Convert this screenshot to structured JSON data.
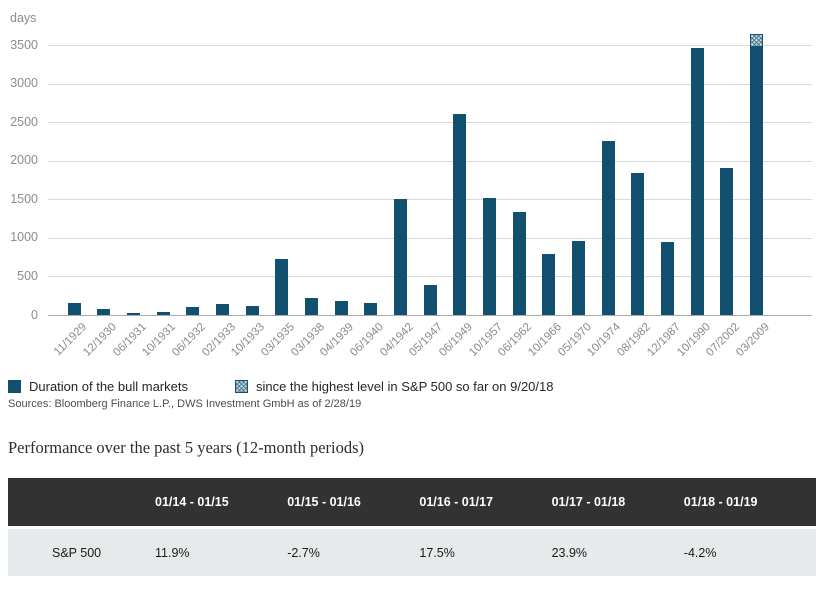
{
  "chart": {
    "unit_label": "days",
    "y_ticks": [
      0,
      500,
      1000,
      1500,
      2000,
      2500,
      3000,
      3500
    ],
    "legend": {
      "solid_label": "Duration of the bull markets",
      "hatched_label": "since the highest level in S&P 500 so far on 9/20/18"
    },
    "sources": "Sources: Bloomberg Finance L.P., DWS Investment GmbH as of 2/28/19"
  },
  "chart_data": {
    "type": "bar",
    "stacked": true,
    "categories": [
      "11/1929",
      "12/1930",
      "06/1931",
      "10/1931",
      "06/1932",
      "02/1933",
      "10/1933",
      "03/1935",
      "03/1938",
      "04/1939",
      "06/1940",
      "04/1942",
      "05/1947",
      "06/1949",
      "10/1957",
      "06/1962",
      "10/1966",
      "05/1970",
      "10/1974",
      "08/1982",
      "12/1987",
      "10/1990",
      "07/2002",
      "03/2009"
    ],
    "series": [
      {
        "name": "Duration of the bull markets",
        "values": [
          150,
          80,
          30,
          40,
          105,
          145,
          115,
          720,
          215,
          185,
          150,
          1500,
          390,
          2610,
          1520,
          1330,
          790,
          965,
          2250,
          1845,
          950,
          3455,
          1910,
          3480
        ]
      },
      {
        "name": "since the highest level in S&P 500 so far on 9/20/18",
        "values": [
          0,
          0,
          0,
          0,
          0,
          0,
          0,
          0,
          0,
          0,
          0,
          0,
          0,
          0,
          0,
          0,
          0,
          0,
          0,
          0,
          0,
          0,
          0,
          160
        ]
      }
    ],
    "ylabel": "days",
    "ylim": [
      0,
      3500
    ],
    "grid": true,
    "legend_position": "bottom"
  },
  "table_section": {
    "title": "Performance over the past 5 years (12-month periods)",
    "columns": [
      "",
      "01/14 - 01/15",
      "01/15 - 01/16",
      "01/16 - 01/17",
      "01/17 - 01/18",
      "01/18 - 01/19"
    ],
    "rows": [
      {
        "label": "S&P 500",
        "values": [
          "11.9%",
          "-2.7%",
          "17.5%",
          "23.9%",
          "-4.2%"
        ]
      }
    ]
  },
  "colors": {
    "bar": "#11506e",
    "hatch_fill": "#c5d7e1",
    "hatch_line": "#16526e",
    "grid": "#d9d9d9",
    "table_header_bg": "#323232",
    "table_row_bg": "#e7eaeb"
  }
}
